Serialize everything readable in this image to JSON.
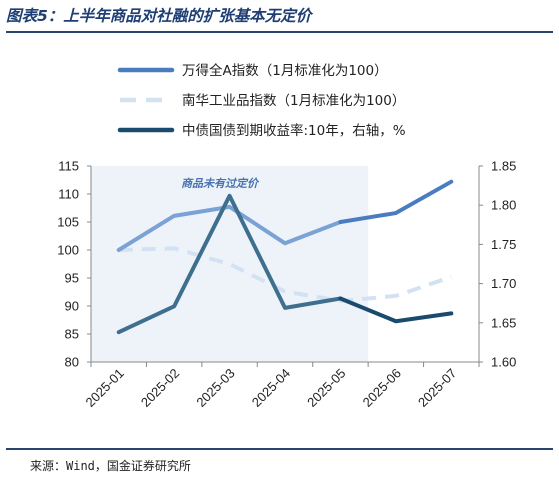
{
  "header": {
    "title": "图表5：上半年商品对社融的扩张基本无定价"
  },
  "footer": {
    "source": "来源：Wind，国金证券研究所"
  },
  "chart_data": {
    "type": "line",
    "categories": [
      "2025-01",
      "2025-02",
      "2025-03",
      "2025-04",
      "2025-05",
      "2025-06",
      "2025-07"
    ],
    "y_left": {
      "lim": [
        80,
        115
      ],
      "ticks": [
        80,
        85,
        90,
        95,
        100,
        105,
        110,
        115
      ]
    },
    "y_right": {
      "lim": [
        1.6,
        1.85
      ],
      "ticks": [
        "1.60",
        "1.65",
        "1.70",
        "1.75",
        "1.80",
        "1.85"
      ]
    },
    "grid": false,
    "legend_position": "top",
    "shaded_region": {
      "from": "2025-01",
      "to": "2025-05",
      "label": "商品未有过定价",
      "color": "#eef3fa"
    },
    "series": [
      {
        "name": "万得全A指数（1月标准化为100）",
        "axis": "left",
        "style": "solid",
        "color": "#4a7cc0",
        "shaded_color": "#7aa2d4",
        "values": [
          100.0,
          106.1,
          107.7,
          101.2,
          105.0,
          106.6,
          112.2
        ]
      },
      {
        "name": "南华工业品指数（1月标准化为100）",
        "axis": "left",
        "style": "dashed",
        "color": "#d3e2f2",
        "values": [
          100.0,
          100.3,
          97.5,
          92.6,
          90.9,
          91.8,
          95.2
        ]
      },
      {
        "name": "中债国债到期收益率:10年，右轴，%",
        "axis": "right",
        "style": "solid",
        "color": "#1a4a6e",
        "shaded_color": "#3f6f8f",
        "values": [
          1.638,
          1.671,
          1.812,
          1.669,
          1.681,
          1.652,
          1.662
        ]
      }
    ]
  }
}
